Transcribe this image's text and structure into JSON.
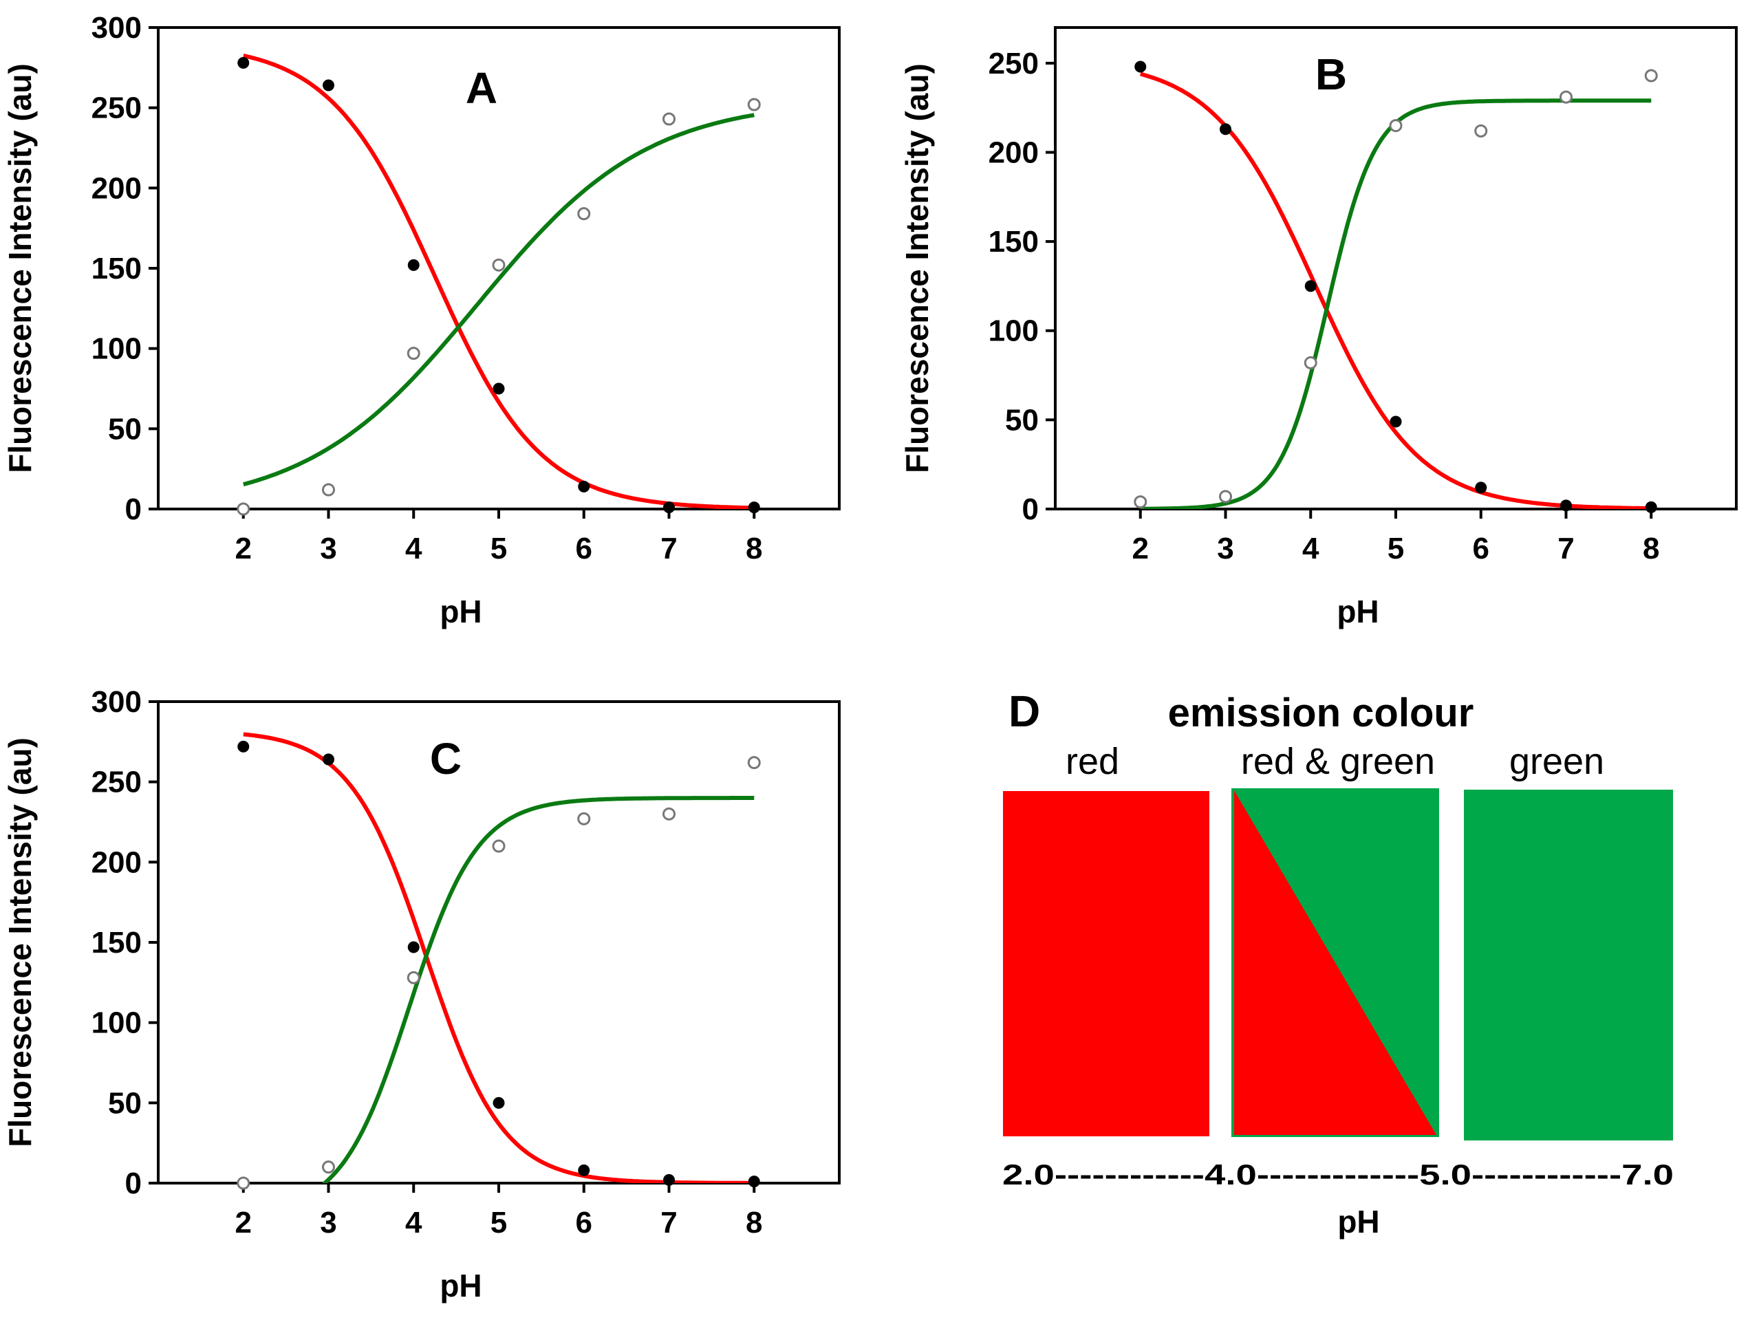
{
  "colors": {
    "red": "#ff0000",
    "green": "#00a84a",
    "curve_green": "#0a7a12"
  },
  "chart_data": [
    {
      "id": "A",
      "type": "scatter",
      "panel_label": "A",
      "xlabel": "pH",
      "ylabel": "Fluorescence Intensity (au)",
      "xlim": [
        1,
        9
      ],
      "ylim": [
        0,
        300
      ],
      "xticks": [
        2,
        3,
        4,
        5,
        6,
        7,
        8
      ],
      "yticks": [
        0,
        50,
        100,
        150,
        200,
        250,
        300
      ],
      "series": [
        {
          "name": "red emission (filled)",
          "marker": "filled",
          "x": [
            2,
            3,
            4,
            5,
            6,
            7,
            8
          ],
          "y": [
            278,
            264,
            152,
            75,
            14,
            1,
            1
          ]
        },
        {
          "name": "green emission (open)",
          "marker": "open",
          "x": [
            2,
            3,
            4,
            5,
            6,
            7,
            8
          ],
          "y": [
            0,
            12,
            97,
            152,
            184,
            243,
            252
          ]
        }
      ],
      "fits": [
        {
          "name": "red fit",
          "color": "#ff0000",
          "model": "sigmoid",
          "bottom": 0,
          "top": 290,
          "pKa": 4.25,
          "slope": 0.62,
          "x_range": [
            2,
            8
          ]
        },
        {
          "name": "green fit",
          "color": "#0a7a12",
          "model": "sigmoid",
          "bottom": 0,
          "top": 255,
          "pKa": 4.75,
          "slope": 1.0,
          "x_range": [
            2,
            8
          ]
        }
      ]
    },
    {
      "id": "B",
      "type": "scatter",
      "panel_label": "B",
      "xlabel": "pH",
      "ylabel": "Fluorescence Intensity (au)",
      "xlim": [
        1,
        9
      ],
      "ylim": [
        0,
        270
      ],
      "xticks": [
        2,
        3,
        4,
        5,
        6,
        7,
        8
      ],
      "yticks": [
        0,
        50,
        100,
        150,
        200,
        250
      ],
      "series": [
        {
          "name": "red emission (filled)",
          "marker": "filled",
          "x": [
            2,
            3,
            4,
            5,
            6,
            7,
            8
          ],
          "y": [
            248,
            213,
            125,
            49,
            12,
            2,
            1
          ]
        },
        {
          "name": "green emission (open)",
          "marker": "open",
          "x": [
            2,
            3,
            4,
            5,
            6,
            7,
            8
          ],
          "y": [
            4,
            7,
            82,
            215,
            212,
            231,
            243
          ]
        }
      ],
      "fits": [
        {
          "name": "red fit",
          "color": "#ff0000",
          "model": "sigmoid",
          "bottom": 0,
          "top": 252,
          "pKa": 4.05,
          "slope": 0.6,
          "x_range": [
            2,
            8
          ]
        },
        {
          "name": "green fit",
          "color": "#0a7a12",
          "model": "sigmoid",
          "bottom": 0,
          "top": 229,
          "pKa": 4.2,
          "slope": 0.28,
          "x_range": [
            2,
            8
          ]
        }
      ]
    },
    {
      "id": "C",
      "type": "scatter",
      "panel_label": "C",
      "xlabel": "pH",
      "ylabel": "Fluorescence Intensity (au)",
      "xlim": [
        1,
        9
      ],
      "ylim": [
        0,
        300
      ],
      "xticks": [
        2,
        3,
        4,
        5,
        6,
        7,
        8
      ],
      "yticks": [
        0,
        50,
        100,
        150,
        200,
        250,
        300
      ],
      "series": [
        {
          "name": "red emission (filled)",
          "marker": "filled",
          "x": [
            2,
            3,
            4,
            5,
            6,
            7,
            8
          ],
          "y": [
            272,
            264,
            147,
            50,
            8,
            2,
            1
          ]
        },
        {
          "name": "green emission (open)",
          "marker": "open",
          "x": [
            2,
            3,
            4,
            5,
            6,
            7,
            8
          ],
          "y": [
            0,
            10,
            128,
            210,
            227,
            230,
            262
          ]
        }
      ],
      "fits": [
        {
          "name": "red fit",
          "color": "#ff0000",
          "model": "sigmoid",
          "bottom": 0,
          "top": 282,
          "pKa": 4.15,
          "slope": 0.45,
          "x_range": [
            2,
            8
          ]
        },
        {
          "name": "green fit",
          "color": "#0a7a12",
          "model": "sigmoid",
          "bottom": -20,
          "top": 240,
          "pKa": 3.95,
          "slope": 0.4,
          "x_range": [
            2,
            8
          ]
        }
      ]
    }
  ],
  "panel_d": {
    "panel_label": "D",
    "title": "emission colour",
    "blocks": [
      {
        "label": "red",
        "kind": "red"
      },
      {
        "label": "red & green",
        "kind": "split"
      },
      {
        "label": "green",
        "kind": "green"
      }
    ],
    "scale_text": "2.0------------4.0-------------5.0------------7.0",
    "xlabel": "pH"
  }
}
